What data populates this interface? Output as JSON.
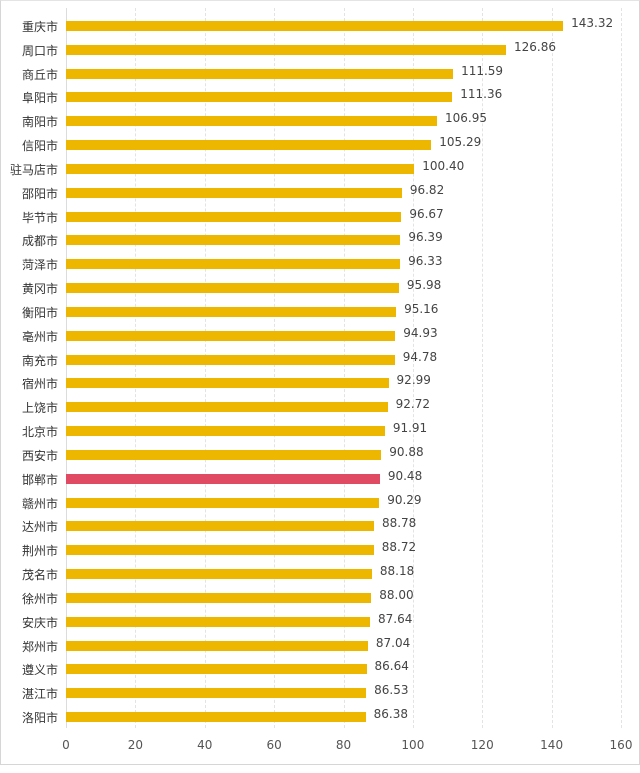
{
  "chart_data": {
    "type": "bar",
    "orientation": "horizontal",
    "title": "",
    "xlabel": "",
    "ylabel": "",
    "xlim": [
      0,
      160
    ],
    "x_ticks": [
      "0",
      "20",
      "40",
      "60",
      "80",
      "100",
      "120",
      "140",
      "160"
    ],
    "grid": true,
    "legend": null,
    "categories": [
      "重庆市",
      "周口市",
      "商丘市",
      "阜阳市",
      "南阳市",
      "信阳市",
      "驻马店市",
      "邵阳市",
      "毕节市",
      "成都市",
      "菏泽市",
      "黄冈市",
      "衡阳市",
      "亳州市",
      "南充市",
      "宿州市",
      "上饶市",
      "北京市",
      "西安市",
      "邯郸市",
      "赣州市",
      "达州市",
      "荆州市",
      "茂名市",
      "徐州市",
      "安庆市",
      "郑州市",
      "遵义市",
      "湛江市",
      "洛阳市"
    ],
    "values": [
      143.32,
      126.86,
      111.59,
      111.36,
      106.95,
      105.29,
      100.4,
      96.82,
      96.67,
      96.39,
      96.33,
      95.98,
      95.16,
      94.93,
      94.78,
      92.99,
      92.72,
      91.91,
      90.88,
      90.48,
      90.29,
      88.78,
      88.72,
      88.18,
      88.0,
      87.64,
      87.04,
      86.64,
      86.53,
      86.38
    ],
    "value_labels": [
      "143.32",
      "126.86",
      "111.59",
      "111.36",
      "106.95",
      "105.29",
      "100.40",
      "96.82",
      "96.67",
      "96.39",
      "96.33",
      "95.98",
      "95.16",
      "94.93",
      "94.78",
      "92.99",
      "92.72",
      "91.91",
      "90.88",
      "90.48",
      "90.29",
      "88.78",
      "88.72",
      "88.18",
      "88.00",
      "87.64",
      "87.04",
      "86.64",
      "86.53",
      "86.38"
    ],
    "highlight_index": 19,
    "colors": {
      "bar": "#EDB700",
      "highlight": "#E04A63"
    }
  }
}
